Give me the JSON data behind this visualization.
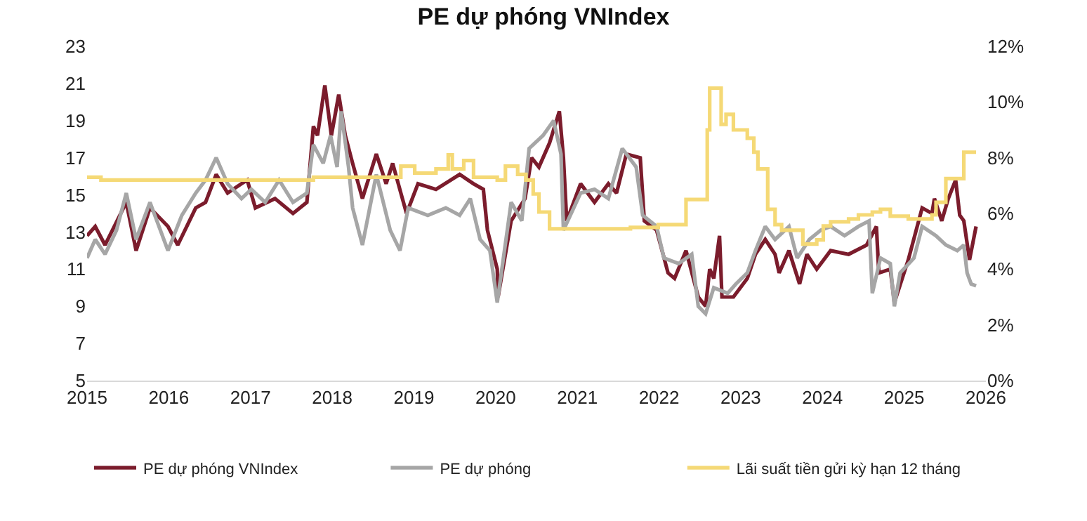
{
  "chart_data": {
    "type": "line",
    "title": "PE dự phóng VNIndex",
    "xlim": [
      2015,
      2026
    ],
    "xticks": [
      2015,
      2016,
      2017,
      2018,
      2019,
      2020,
      2021,
      2022,
      2023,
      2024,
      2025,
      2026
    ],
    "ylim": [
      5,
      23
    ],
    "yticks": [
      5,
      7,
      9,
      11,
      13,
      15,
      17,
      19,
      21,
      23
    ],
    "y2lim": [
      0,
      12
    ],
    "y2ticks": [
      {
        "value": 0,
        "label": "0%"
      },
      {
        "value": 2,
        "label": "2%"
      },
      {
        "value": 4,
        "label": "4%"
      },
      {
        "value": 6,
        "label": "6%"
      },
      {
        "value": 8,
        "label": "8%"
      },
      {
        "value": 10,
        "label": "10%"
      },
      {
        "value": 12,
        "label": "12%"
      }
    ],
    "legend": "bottom",
    "marker": "none",
    "line_style": "solid",
    "series": [
      {
        "name": "PE dự phóng VNIndex",
        "color": "#7b1c2c",
        "x": [
          2015.0,
          2015.1,
          2015.22,
          2015.31,
          2015.48,
          2015.6,
          2015.77,
          2015.99,
          2016.11,
          2016.33,
          2016.45,
          2016.58,
          2016.72,
          2016.89,
          2016.96,
          2017.06,
          2017.3,
          2017.52,
          2017.69,
          2017.77,
          2017.82,
          2017.91,
          2017.99,
          2018.08,
          2018.16,
          2018.25,
          2018.37,
          2018.54,
          2018.66,
          2018.74,
          2018.84,
          2018.91,
          2019.05,
          2019.27,
          2019.56,
          2019.73,
          2019.85,
          2019.9,
          2020.02,
          2020.03,
          2020.19,
          2020.36,
          2020.44,
          2020.53,
          2020.66,
          2020.78,
          2020.83,
          2020.87,
          2021.04,
          2021.21,
          2021.38,
          2021.48,
          2021.6,
          2021.77,
          2021.82,
          2021.97,
          2022.11,
          2022.19,
          2022.33,
          2022.48,
          2022.57,
          2022.62,
          2022.67,
          2022.74,
          2022.77,
          2022.91,
          2023.08,
          2023.18,
          2023.3,
          2023.42,
          2023.47,
          2023.59,
          2023.72,
          2023.81,
          2023.93,
          2024.1,
          2024.32,
          2024.54,
          2024.66,
          2024.69,
          2024.83,
          2024.88,
          2025.05,
          2025.22,
          2025.34,
          2025.37,
          2025.46,
          2025.54,
          2025.63,
          2025.68,
          2025.73,
          2025.8,
          2025.88
        ],
        "values": [
          12.8,
          13.3,
          12.3,
          13.1,
          14.6,
          12.0,
          14.3,
          13.3,
          12.3,
          14.3,
          14.6,
          16.1,
          15.1,
          15.6,
          15.8,
          14.3,
          14.8,
          14.0,
          14.6,
          18.7,
          18.2,
          20.9,
          18.2,
          20.4,
          18.2,
          16.7,
          14.8,
          17.2,
          15.6,
          16.7,
          15.1,
          14.0,
          15.6,
          15.3,
          16.1,
          15.6,
          15.3,
          13.1,
          11.0,
          9.5,
          13.6,
          14.8,
          17.0,
          16.5,
          17.8,
          19.5,
          17.0,
          13.6,
          15.6,
          14.6,
          15.6,
          15.1,
          17.2,
          17.0,
          13.6,
          13.1,
          10.8,
          10.5,
          12.0,
          9.5,
          9.0,
          11.0,
          10.5,
          12.8,
          9.5,
          9.5,
          10.5,
          11.8,
          12.6,
          11.8,
          10.8,
          12.0,
          10.2,
          11.8,
          11.0,
          12.0,
          11.8,
          12.3,
          13.3,
          10.8,
          11.0,
          9.2,
          11.5,
          14.3,
          14.0,
          14.8,
          13.6,
          14.8,
          15.8,
          13.9,
          13.6,
          11.5,
          13.3
        ]
      },
      {
        "name": "PE dự phóng",
        "color": "#a6a6a6",
        "x": [
          2015.0,
          2015.1,
          2015.22,
          2015.36,
          2015.48,
          2015.6,
          2015.77,
          2015.99,
          2016.16,
          2016.33,
          2016.45,
          2016.58,
          2016.72,
          2016.89,
          2017.01,
          2017.18,
          2017.35,
          2017.52,
          2017.69,
          2017.77,
          2017.89,
          2017.98,
          2018.06,
          2018.11,
          2018.2,
          2018.25,
          2018.37,
          2018.54,
          2018.71,
          2018.83,
          2018.93,
          2019.17,
          2019.39,
          2019.56,
          2019.69,
          2019.81,
          2019.93,
          2020.02,
          2020.19,
          2020.32,
          2020.41,
          2020.58,
          2020.71,
          2020.8,
          2020.83,
          2021.04,
          2021.21,
          2021.38,
          2021.55,
          2021.72,
          2021.8,
          2021.97,
          2022.06,
          2022.24,
          2022.4,
          2022.48,
          2022.57,
          2022.67,
          2022.84,
          2022.94,
          2023.08,
          2023.18,
          2023.3,
          2023.42,
          2023.59,
          2023.69,
          2023.84,
          2023.98,
          2024.1,
          2024.27,
          2024.44,
          2024.57,
          2024.61,
          2024.71,
          2024.83,
          2024.88,
          2024.95,
          2025.12,
          2025.22,
          2025.39,
          2025.51,
          2025.65,
          2025.73,
          2025.77,
          2025.82,
          2025.88
        ],
        "values": [
          11.6,
          12.6,
          11.8,
          13.1,
          15.1,
          12.6,
          14.6,
          12.0,
          13.9,
          15.1,
          15.8,
          17.0,
          15.6,
          14.8,
          15.3,
          14.6,
          15.8,
          14.6,
          15.1,
          17.7,
          16.7,
          18.2,
          16.5,
          19.5,
          16.5,
          14.3,
          12.3,
          16.1,
          13.1,
          12.0,
          14.3,
          13.9,
          14.3,
          13.9,
          14.8,
          12.6,
          12.0,
          9.2,
          14.6,
          13.6,
          17.5,
          18.2,
          19.0,
          17.2,
          13.1,
          15.1,
          15.3,
          14.8,
          17.5,
          16.5,
          13.9,
          13.3,
          11.6,
          11.3,
          11.8,
          9.0,
          8.6,
          10.0,
          9.7,
          10.2,
          10.8,
          12.0,
          13.3,
          12.6,
          13.3,
          11.6,
          12.6,
          13.1,
          13.3,
          12.8,
          13.3,
          13.6,
          9.7,
          11.6,
          11.3,
          9.0,
          10.8,
          11.6,
          13.3,
          12.8,
          12.3,
          12.0,
          12.3,
          10.8,
          10.2,
          10.1
        ]
      },
      {
        "name": "Lãi suất tiền gửi kỳ hạn 12 tháng",
        "color": "#f5d976",
        "type": "step",
        "axis": "y2",
        "x": [
          2015.0,
          2015.17,
          2017.77,
          2018.84,
          2019.01,
          2019.27,
          2019.42,
          2019.47,
          2019.61,
          2019.73,
          2020.02,
          2020.12,
          2020.27,
          2020.37,
          2020.46,
          2020.53,
          2020.66,
          2021.65,
          2021.99,
          2022.33,
          2022.59,
          2022.62,
          2022.76,
          2022.82,
          2022.91,
          2023.08,
          2023.16,
          2023.21,
          2023.33,
          2023.42,
          2023.5,
          2023.76,
          2023.93,
          2024.01,
          2024.1,
          2024.32,
          2024.44,
          2024.61,
          2024.71,
          2024.83,
          2025.05,
          2025.34,
          2025.39,
          2025.51,
          2025.73,
          2025.88
        ],
        "values": [
          7.3,
          7.2,
          7.3,
          7.7,
          7.45,
          7.6,
          8.1,
          7.6,
          7.9,
          7.3,
          7.2,
          7.7,
          7.4,
          7.2,
          6.7,
          6.05,
          5.45,
          5.5,
          5.6,
          6.5,
          9.0,
          10.5,
          9.2,
          9.56,
          9.0,
          8.7,
          8.2,
          7.6,
          6.15,
          5.6,
          5.4,
          4.9,
          5.05,
          5.55,
          5.7,
          5.8,
          5.95,
          6.05,
          6.15,
          5.9,
          5.8,
          5.95,
          6.4,
          7.25,
          8.2,
          8.2
        ]
      }
    ]
  }
}
